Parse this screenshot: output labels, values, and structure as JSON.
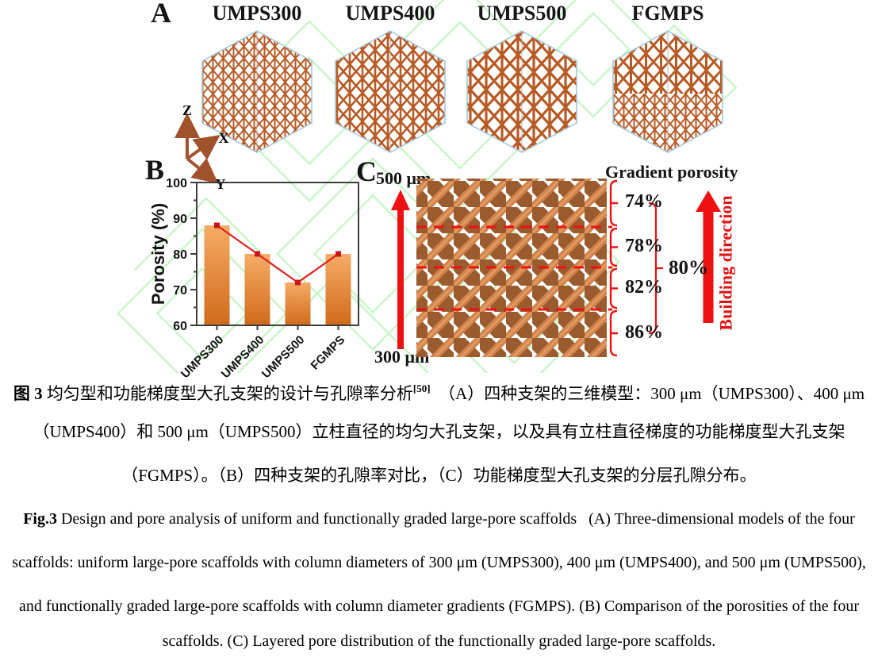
{
  "figure": {
    "panelA": {
      "label": "A",
      "scaffolds": [
        {
          "name": "UMPS300"
        },
        {
          "name": "UMPS400"
        },
        {
          "name": "UMPS500"
        },
        {
          "name": "FGMPS"
        }
      ],
      "axis": {
        "x": "X",
        "y": "Y",
        "z": "Z"
      }
    },
    "panelB": {
      "label": "B"
    },
    "panelC": {
      "label": "C",
      "top_scale": "500 μm",
      "bottom_scale": "300 μm",
      "gradient_title": "Gradient porosity",
      "layer_porosities": [
        "74%",
        "78%",
        "82%",
        "86%"
      ],
      "overall_porosity": "80%",
      "building_direction": "Building direction"
    }
  },
  "chart_data": {
    "type": "bar",
    "categories": [
      "UMPS300",
      "UMPS400",
      "UMPS500",
      "FGMPS"
    ],
    "values": [
      88,
      80,
      72,
      80
    ],
    "line_overlay_values": [
      88,
      80,
      72,
      80
    ],
    "title": "",
    "xlabel": "",
    "ylabel": "Porosity (%)",
    "ylim": [
      60,
      100
    ],
    "yticks": [
      60,
      70,
      80,
      90,
      100
    ],
    "minor_tick_step": 5,
    "grid": false,
    "legend": "none"
  },
  "caption": {
    "zh_prefix": "图 3",
    "zh_line1": " 均匀型和功能梯度型大孔支架的设计与孔隙率分析",
    "zh_ref_superscript": "[50]",
    "zh_line1_rest": "　（A）四种支架的三维模型：300 μm（UMPS300）、400 μm",
    "zh_line2": "（UMPS400）和 500 μm（UMPS500）立柱直径的均匀大孔支架，以及具有立柱直径梯度的功能梯度型大孔支架",
    "zh_line3": "（FGMPS）。（B）四种支架的孔隙率对比，（C）功能梯度型大孔支架的分层孔隙分布。",
    "en_prefix": "Fig.3",
    "en_line1": " Design and pore analysis of uniform and functionally graded large-pore scaffolds   (A) Three-dimensional models of the four",
    "en_line2": "scaffolds: uniform large-pore scaffolds with column diameters of 300 μm (UMPS300), 400 μm (UMPS400), and 500 μm (UMPS500),",
    "en_line3": "and functionally graded large-pore scaffolds with column diameter gradients (FGMPS). (B) Comparison of the porosities of the four",
    "en_line4": "scaffolds. (C) Layered pore distribution of the functionally graded large-pore scaffolds."
  },
  "colors": {
    "bar_top": "#F6AC66",
    "bar_bottom": "#D06A1A",
    "overlay_line_red": "#E02020",
    "marker_red": "#CC1518",
    "arrow_red": "#EE1111",
    "lattice_light": "#D0824A",
    "lattice_dark": "#9A5B2E",
    "scaffold_strut": "#B85A24",
    "hexagon_edge": "#A9CCE0",
    "axis_triad_brown": "#A0522D",
    "watermark_green": "#90EE90"
  }
}
